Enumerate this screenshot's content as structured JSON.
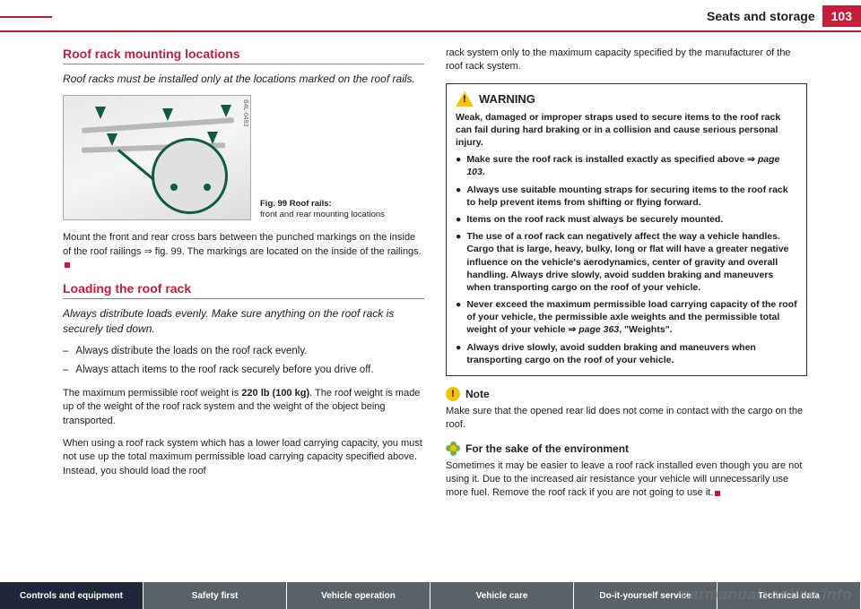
{
  "header": {
    "section": "Seats and storage",
    "page": "103"
  },
  "left": {
    "sec1_title": "Roof rack mounting locations",
    "sec1_intro": "Roof racks must be installed only at the locations marked on the roof rails.",
    "fig_label": "B4L-0493",
    "fig_caption_a": "Fig. 99   Roof rails:",
    "fig_caption_b": "front and rear mounting locations",
    "sec1_body": "Mount the front and rear cross bars between the punched markings on the inside of the roof railings ⇒ fig. 99. The markings are located on the inside of the railings.",
    "sec2_title": "Loading the roof rack",
    "sec2_intro": "Always distribute loads evenly. Make sure anything on the roof rack is securely tied down.",
    "sec2_b1": "Always distribute the loads on the roof rack evenly.",
    "sec2_b2": "Always attach items to the roof rack securely before you drive off.",
    "sec2_p1a": "The maximum permissible roof weight is ",
    "sec2_p1b": "220 lb (100 kg)",
    "sec2_p1c": ". The roof weight is made up of the weight of the roof rack system and the weight of the object being transported.",
    "sec2_p2": "When using a roof rack system which has a lower load carrying capacity, you must not use up the total maximum permissible load carrying capacity specified above. Instead, you should load the roof"
  },
  "right": {
    "cont": "rack system only to the maximum capacity specified by the manufacturer of the roof rack system.",
    "warn_title": "WARNING",
    "warn_intro": "Weak, damaged or improper straps used to secure items to the roof rack can fail during hard braking or in a collision and cause serious personal injury.",
    "w1a": "Make sure the roof rack is installed exactly as specified above ⇒ ",
    "w1b": "page 103",
    "w1c": ".",
    "w2": "Always use suitable mounting straps for securing items to the roof rack to help prevent items from shifting or flying forward.",
    "w3": "Items on the roof rack must always be securely mounted.",
    "w4": "The use of a roof rack can negatively affect the way a vehicle handles. Cargo that is large, heavy, bulky, long or flat will have a greater negative influence on the vehicle's aerodynamics, center of gravity and overall handling. Always drive slowly, avoid sudden braking and maneuvers when transporting cargo on the roof of your vehicle.",
    "w5a": "Never exceed the maximum permissible load carrying capacity of the roof of your vehicle, the permissible axle weights and the permissible total weight of your vehicle ⇒ ",
    "w5b": "page 363",
    "w5c": ", \"Weights\".",
    "w6": "Always drive slowly, avoid sudden braking and maneuvers when transporting cargo on the roof of your vehicle.",
    "note_title": "Note",
    "note_body": "Make sure that the opened rear lid does not come in contact with the cargo on the roof.",
    "env_title": "For the sake of the environment",
    "env_body": "Sometimes it may be easier to leave a roof rack installed even though you are not using it. Due to the increased air resistance your vehicle will unnecessarily use more fuel. Remove the roof rack if you are not going to use it."
  },
  "footer": {
    "t1": "Controls and equipment",
    "t2": "Safety first",
    "t3": "Vehicle operation",
    "t4": "Vehicle care",
    "t5": "Do-it-yourself service",
    "t6": "Technical data"
  },
  "watermark": "carmanualsonline.info"
}
